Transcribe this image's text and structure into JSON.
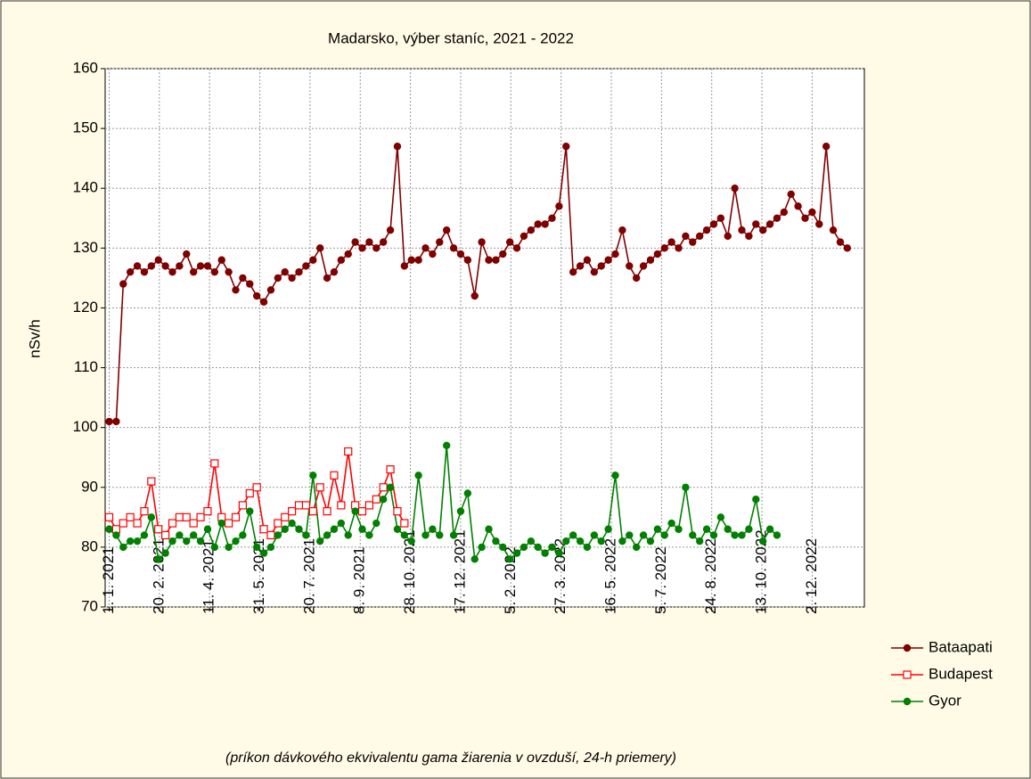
{
  "chart_data": {
    "type": "line",
    "title": "Madarsko, výber staníc, 2021 - 2022",
    "ylabel": "nSv/h",
    "annotation": "(príkon dávkového ekvivalentu gama žiarenia v ovzduší, 24-h priemery)",
    "x": [
      0,
      7,
      14,
      21,
      28,
      35,
      42,
      49,
      56,
      63,
      70,
      77,
      84,
      91,
      98,
      105,
      112,
      119,
      126,
      133,
      140,
      147,
      154,
      161,
      168,
      175,
      182,
      189,
      196,
      203,
      210,
      217,
      224,
      231,
      238,
      245,
      252,
      259,
      266,
      273,
      280,
      287,
      294,
      301,
      308,
      315,
      322,
      329,
      336,
      343,
      350,
      357,
      364,
      371,
      378,
      385,
      392,
      399,
      406,
      413,
      420,
      427,
      434,
      441,
      448,
      455,
      462,
      469,
      476,
      483,
      490,
      497,
      504,
      511,
      518,
      525,
      532,
      539,
      546,
      553,
      560,
      567,
      574,
      581,
      588,
      595,
      602,
      609,
      616,
      623,
      630,
      637,
      644,
      651,
      658,
      665,
      672,
      679,
      686,
      693,
      700,
      707,
      714,
      721,
      728,
      735
    ],
    "series": [
      {
        "name": "Bataapati",
        "color": "#800000",
        "marker": "circle",
        "values": [
          101,
          101,
          124,
          126,
          127,
          126,
          127,
          128,
          127,
          126,
          127,
          129,
          126,
          127,
          127,
          126,
          128,
          126,
          123,
          125,
          124,
          122,
          121,
          123,
          125,
          126,
          125,
          126,
          127,
          128,
          130,
          125,
          126,
          128,
          129,
          131,
          130,
          131,
          130,
          131,
          133,
          147,
          127,
          128,
          128,
          130,
          129,
          131,
          133,
          130,
          129,
          128,
          122,
          131,
          128,
          128,
          129,
          131,
          130,
          132,
          133,
          134,
          134,
          135,
          137,
          147,
          126,
          127,
          128,
          126,
          127,
          128,
          129,
          133,
          127,
          125,
          127,
          128,
          129,
          130,
          131,
          130,
          132,
          131,
          132,
          133,
          134,
          135,
          132,
          140,
          133,
          132,
          134,
          133,
          134,
          135,
          136,
          139,
          137,
          135,
          136,
          134,
          147,
          133,
          131,
          130
        ]
      },
      {
        "name": "Budapest",
        "color": "#ff0000",
        "marker": "square",
        "values": [
          85,
          83,
          84,
          85,
          84,
          86,
          91,
          83,
          82,
          84,
          85,
          85,
          84,
          85,
          86,
          94,
          85,
          84,
          85,
          87,
          89,
          90,
          83,
          82,
          84,
          85,
          86,
          87,
          87,
          86,
          90,
          86,
          92,
          87,
          96,
          87,
          86,
          87,
          88,
          90,
          93,
          86,
          84,
          null,
          null,
          null,
          null,
          null,
          null,
          null,
          null,
          null,
          null,
          null,
          null,
          null,
          null,
          null,
          null,
          null,
          null,
          null,
          null,
          null,
          null,
          null,
          null,
          null,
          null,
          null,
          null,
          null,
          null,
          null,
          null,
          null,
          null,
          null,
          null,
          null,
          null,
          null,
          null,
          null,
          null,
          null,
          null,
          null,
          null,
          null,
          null,
          null,
          null,
          null,
          null,
          null,
          null,
          null,
          null,
          null,
          null,
          null,
          null,
          null,
          null,
          null
        ]
      },
      {
        "name": "Gyor",
        "color": "#008000",
        "marker": "circle",
        "values": [
          83,
          82,
          80,
          81,
          81,
          82,
          85,
          78,
          79,
          81,
          82,
          81,
          82,
          81,
          83,
          80,
          84,
          80,
          81,
          82,
          86,
          80,
          79,
          80,
          82,
          83,
          84,
          83,
          82,
          92,
          81,
          82,
          83,
          84,
          82,
          86,
          83,
          82,
          84,
          88,
          90,
          83,
          82,
          81,
          92,
          82,
          83,
          82,
          97,
          82,
          86,
          89,
          78,
          80,
          83,
          81,
          80,
          78,
          79,
          80,
          81,
          80,
          79,
          80,
          79,
          81,
          82,
          81,
          80,
          82,
          81,
          83,
          92,
          81,
          82,
          80,
          82,
          81,
          83,
          82,
          84,
          83,
          90,
          82,
          81,
          83,
          82,
          85,
          83,
          82,
          82,
          83,
          88,
          81,
          83,
          82,
          null,
          null,
          null,
          null,
          null,
          null,
          null,
          null,
          null,
          null
        ]
      }
    ],
    "xlim": [
      -4,
      752
    ],
    "xticks": [
      {
        "value": 0,
        "label": "1. 1. 2021"
      },
      {
        "value": 50,
        "label": "20. 2. 2021"
      },
      {
        "value": 100,
        "label": "11. 4. 2021"
      },
      {
        "value": 150,
        "label": "31. 5. 2021"
      },
      {
        "value": 200,
        "label": "20. 7. 2021"
      },
      {
        "value": 250,
        "label": "8. 9. 2021"
      },
      {
        "value": 300,
        "label": "28. 10. 2021"
      },
      {
        "value": 350,
        "label": "17. 12. 2021"
      },
      {
        "value": 400,
        "label": "5. 2. 2022"
      },
      {
        "value": 450,
        "label": "27. 3. 2022"
      },
      {
        "value": 500,
        "label": "16. 5. 2022"
      },
      {
        "value": 550,
        "label": "5. 7. 2022"
      },
      {
        "value": 600,
        "label": "24. 8. 2022"
      },
      {
        "value": 650,
        "label": "13. 10. 2022"
      },
      {
        "value": 700,
        "label": "2. 12. 2022"
      }
    ],
    "ylim": [
      70,
      160
    ],
    "yticks": [
      70,
      80,
      90,
      100,
      110,
      120,
      130,
      140,
      150,
      160
    ],
    "grid": true,
    "legend": "bottom-right"
  }
}
